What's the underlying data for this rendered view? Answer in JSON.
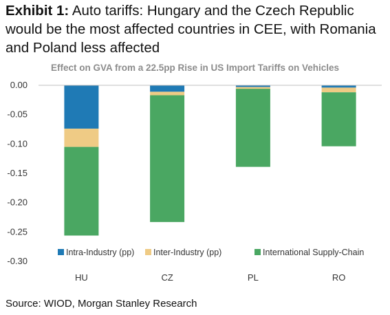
{
  "headline": {
    "lead": "Exhibit 1:",
    "text": "Auto tariffs: Hungary and the Czech Republic would be the most affected countries in CEE, with Romania and Poland less affected"
  },
  "source": "Source: WIOD, Morgan Stanley Research",
  "colors": {
    "intra": "#1f7ab5",
    "inter": "#efcb85",
    "supply": "#4aa762",
    "axis": "#bfbfbf"
  },
  "chart_data": {
    "type": "bar",
    "stacked": true,
    "title": "Effect on GVA from a 22.5pp Rise in US Import Tariffs on Vehicles",
    "categories": [
      "HU",
      "CZ",
      "PL",
      "RO"
    ],
    "series": [
      {
        "name": "Intra-Industry (pp)",
        "values": [
          -0.074,
          -0.011,
          -0.003,
          -0.004
        ]
      },
      {
        "name": "Inter-Industry (pp)",
        "values": [
          -0.031,
          -0.006,
          -0.003,
          -0.008
        ]
      },
      {
        "name": "International Supply-Chain",
        "values": [
          -0.151,
          -0.216,
          -0.133,
          -0.092
        ]
      }
    ],
    "ylim": [
      -0.3,
      0.0
    ],
    "yticks": [
      "0.00",
      "-0.05",
      "-0.10",
      "-0.15",
      "-0.20",
      "-0.25",
      "-0.30"
    ],
    "legend_position": "bottom-inside",
    "grid": false
  }
}
